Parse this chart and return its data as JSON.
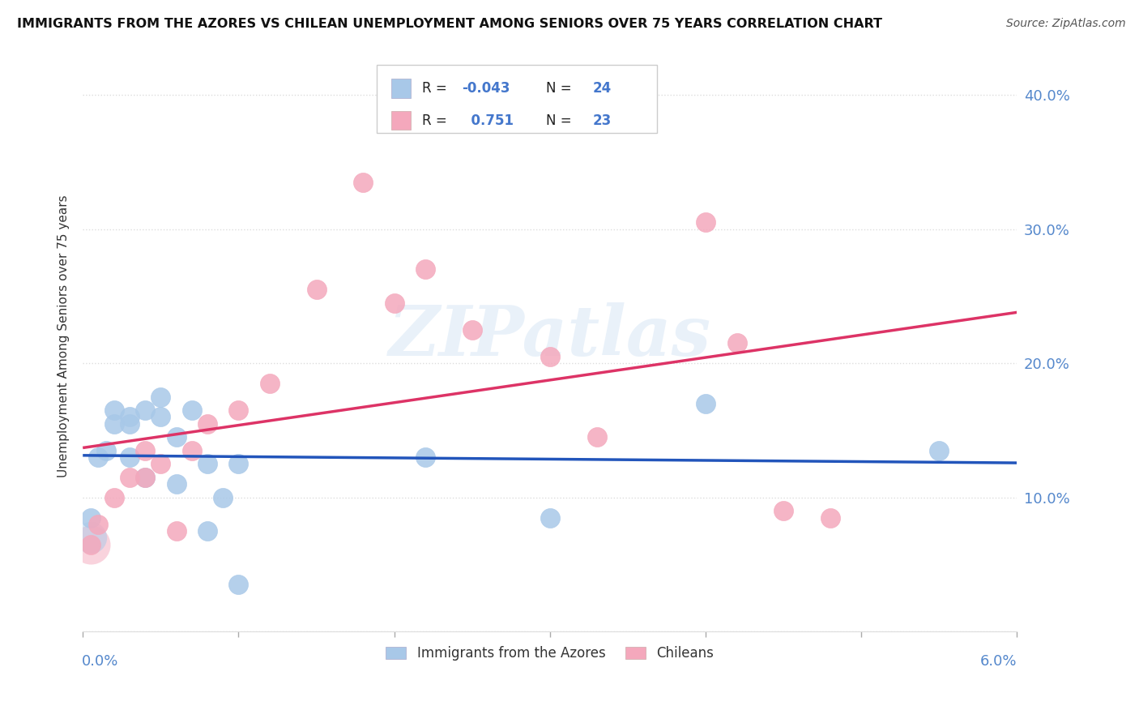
{
  "title": "IMMIGRANTS FROM THE AZORES VS CHILEAN UNEMPLOYMENT AMONG SENIORS OVER 75 YEARS CORRELATION CHART",
  "source": "Source: ZipAtlas.com",
  "ylabel": "Unemployment Among Seniors over 75 years",
  "xlim": [
    0.0,
    0.06
  ],
  "ylim": [
    0.0,
    0.44
  ],
  "yticks": [
    0.0,
    0.1,
    0.2,
    0.3,
    0.4
  ],
  "ytick_labels": [
    "",
    "10.0%",
    "20.0%",
    "30.0%",
    "40.0%"
  ],
  "xticks": [
    0.0,
    0.01,
    0.02,
    0.03,
    0.04,
    0.05,
    0.06
  ],
  "legend_label1": "Immigrants from the Azores",
  "legend_label2": "Chileans",
  "azores_color": "#a8c8e8",
  "chilean_color": "#f4a8bc",
  "azores_scatter_color": "#a8c8e8",
  "chilean_scatter_color": "#f4a8bc",
  "azores_line_color": "#2255bb",
  "chilean_line_color": "#dd3366",
  "dashed_line_color": "#c8c8c8",
  "tick_color": "#5588cc",
  "ylabel_color": "#333333",
  "R_azores": -0.043,
  "N_azores": 24,
  "R_chilean": 0.751,
  "N_chilean": 23,
  "azores_x": [
    0.0005,
    0.001,
    0.0015,
    0.002,
    0.002,
    0.003,
    0.003,
    0.003,
    0.004,
    0.004,
    0.005,
    0.005,
    0.006,
    0.006,
    0.007,
    0.008,
    0.008,
    0.009,
    0.01,
    0.01,
    0.022,
    0.03,
    0.04,
    0.055
  ],
  "azores_y": [
    0.085,
    0.13,
    0.135,
    0.165,
    0.155,
    0.16,
    0.155,
    0.13,
    0.165,
    0.115,
    0.175,
    0.16,
    0.145,
    0.11,
    0.165,
    0.125,
    0.075,
    0.1,
    0.125,
    0.035,
    0.13,
    0.085,
    0.17,
    0.135
  ],
  "chilean_x": [
    0.0005,
    0.001,
    0.002,
    0.003,
    0.004,
    0.004,
    0.005,
    0.006,
    0.007,
    0.008,
    0.01,
    0.012,
    0.015,
    0.018,
    0.02,
    0.022,
    0.025,
    0.03,
    0.033,
    0.04,
    0.042,
    0.045,
    0.048
  ],
  "chilean_y": [
    0.065,
    0.08,
    0.1,
    0.115,
    0.135,
    0.115,
    0.125,
    0.075,
    0.135,
    0.155,
    0.165,
    0.185,
    0.255,
    0.335,
    0.245,
    0.27,
    0.225,
    0.205,
    0.145,
    0.305,
    0.215,
    0.09,
    0.085
  ],
  "watermark_text": "ZIPatlas",
  "background_color": "#ffffff",
  "grid_color": "#dddddd",
  "spine_color": "#dddddd"
}
